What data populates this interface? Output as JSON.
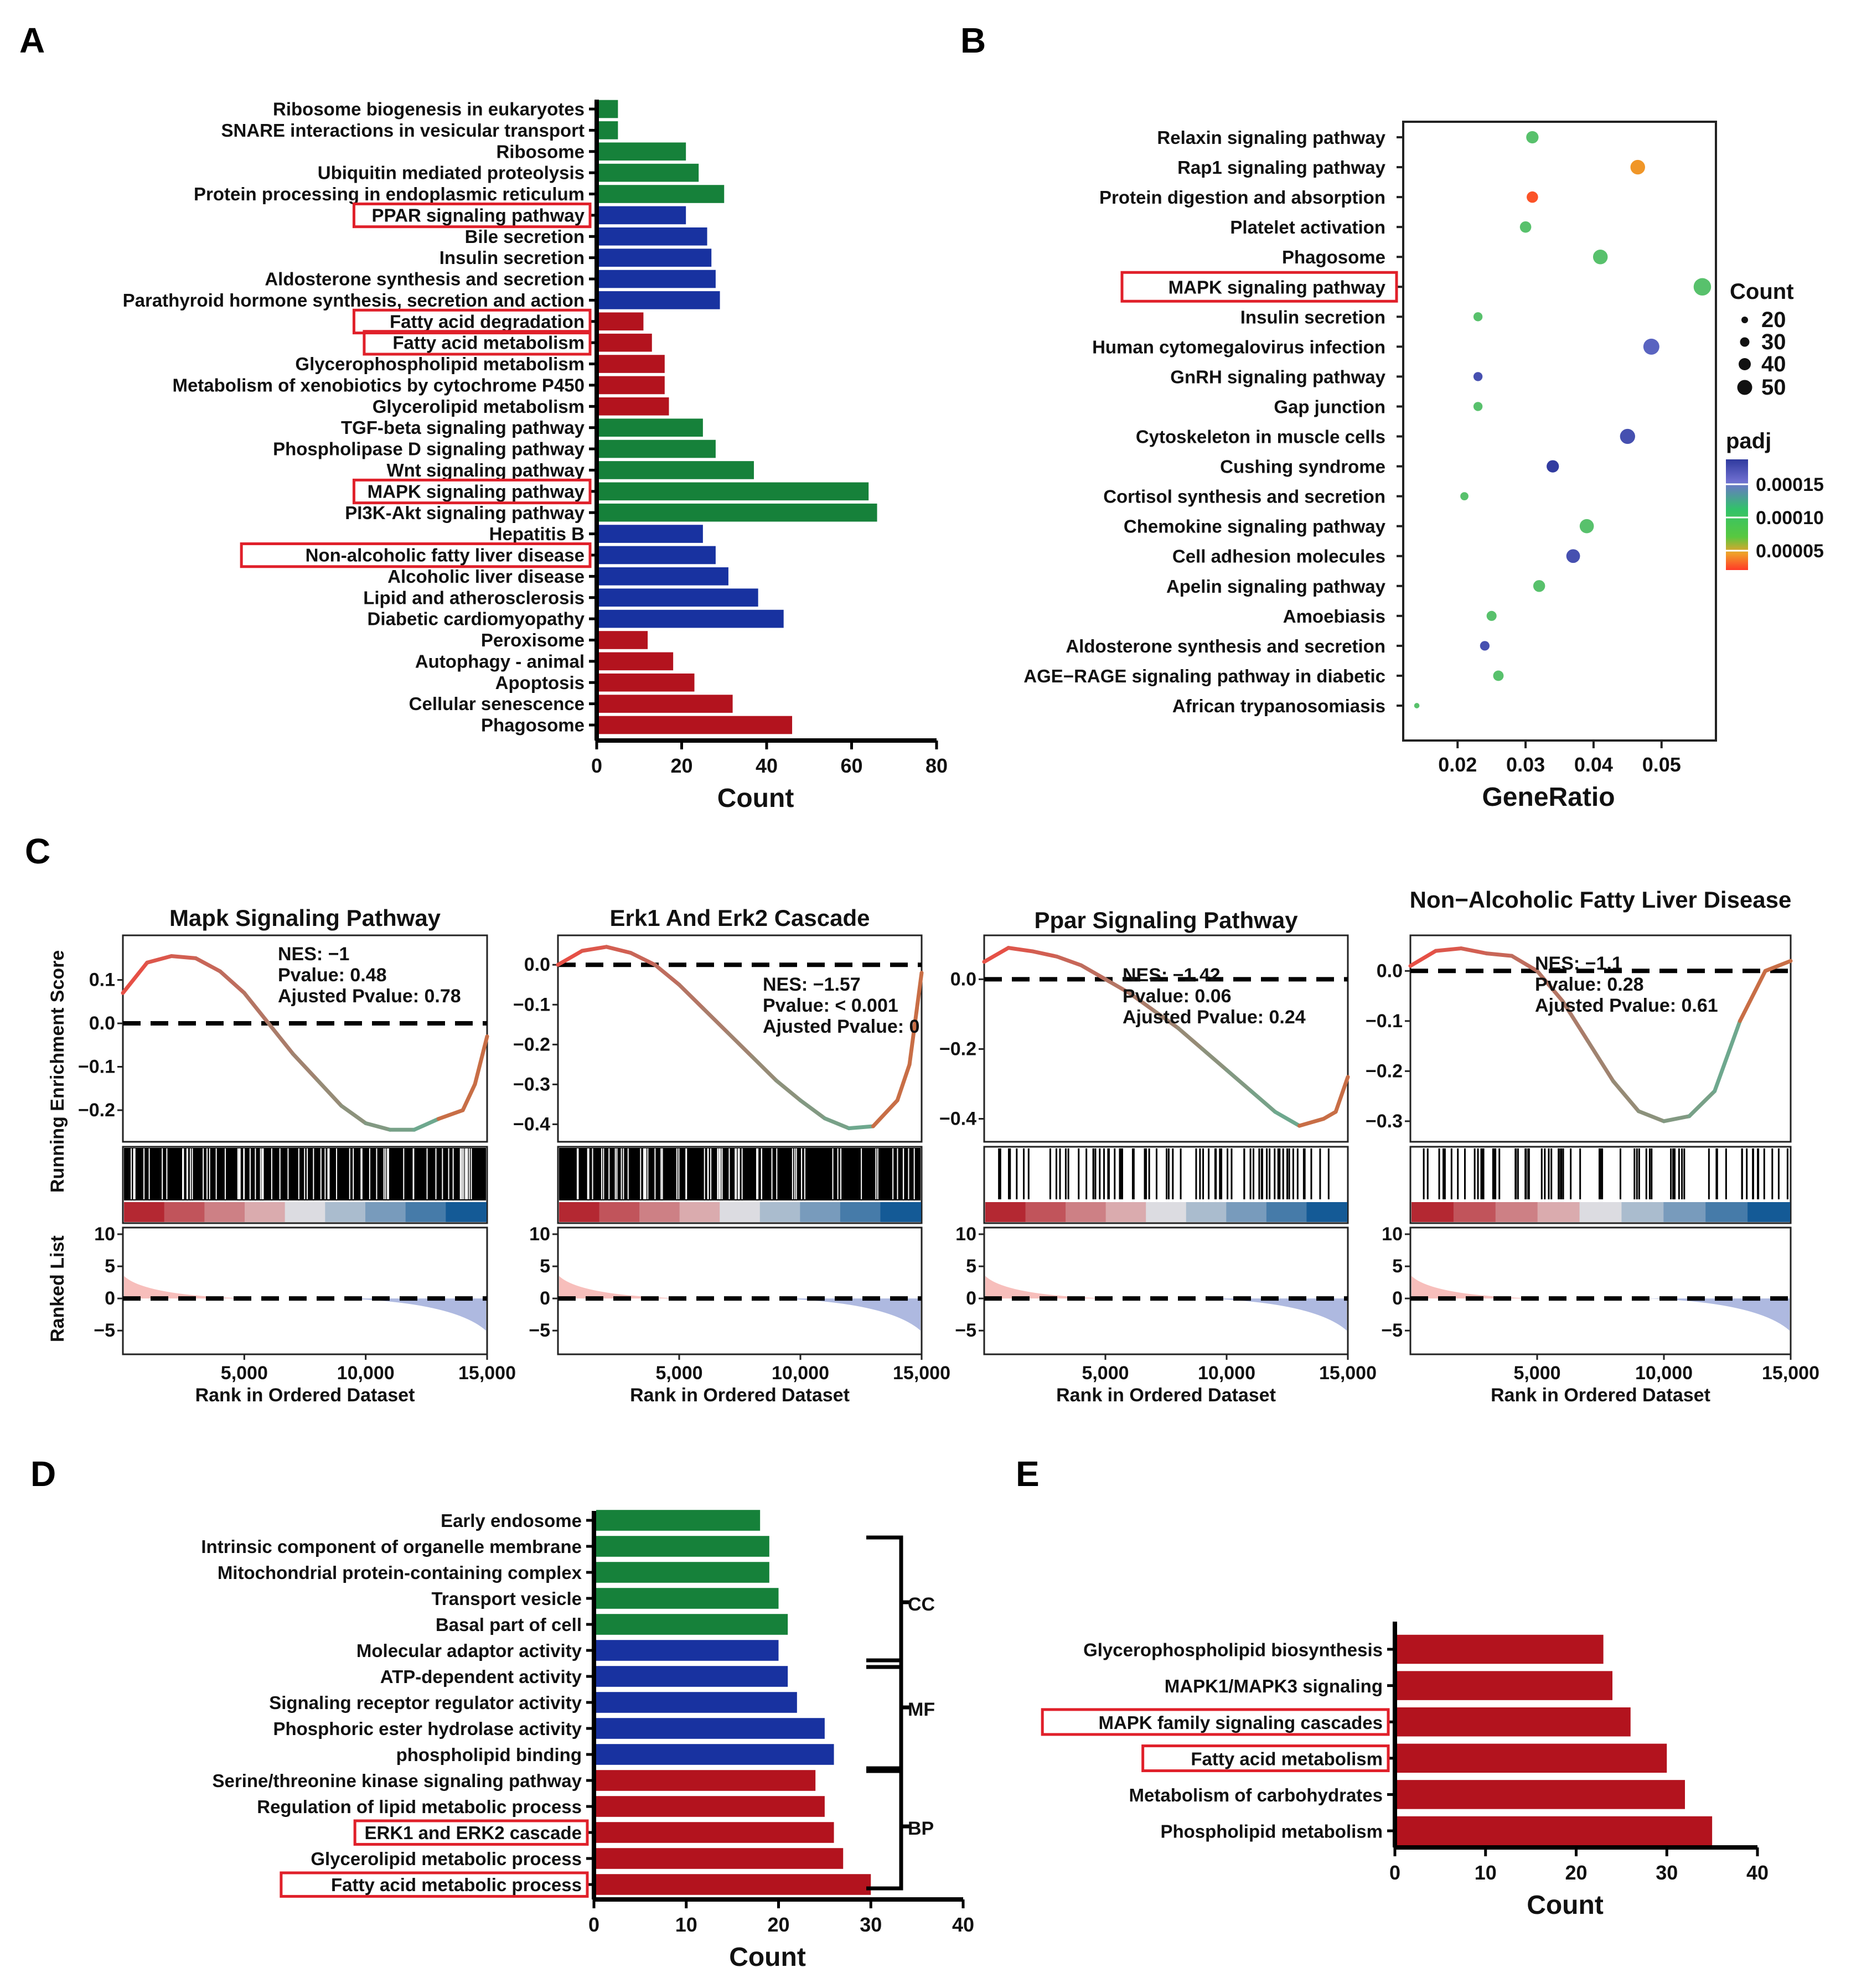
{
  "panel_labels": {
    "A": "A",
    "B": "B",
    "C": "C",
    "D": "D",
    "E": "E"
  },
  "colors": {
    "green": "#16813A",
    "blue": "#1832A0",
    "red": "#B3131E",
    "highlight": "#E0202A",
    "black": "#000000"
  },
  "chart_data": [
    {
      "id": "A",
      "type": "bar",
      "orientation": "horizontal",
      "xlabel": "Count",
      "xlim": [
        0,
        80
      ],
      "xticks": [
        0,
        20,
        40,
        60,
        80
      ],
      "categories": [
        "Ribosome biogenesis in eukaryotes",
        "SNARE interactions in vesicular transport",
        "Ribosome",
        "Ubiquitin mediated proteolysis",
        "Protein processing in endoplasmic reticulum",
        "PPAR signaling pathway",
        "Bile secretion",
        "Insulin secretion",
        "Aldosterone synthesis and secretion",
        "Parathyroid hormone synthesis, secretion and action",
        "Fatty acid degradation",
        "Fatty acid metabolism",
        "Glycerophospholipid metabolism",
        "Metabolism of xenobiotics by cytochrome P450",
        "Glycerolipid metabolism",
        "TGF-beta signaling pathway",
        "Phospholipase D signaling pathway",
        "Wnt signaling pathway",
        "MAPK signaling pathway",
        "PI3K-Akt signaling pathway",
        "Hepatitis B",
        "Non-alcoholic fatty liver disease",
        "Alcoholic liver disease",
        "Lipid and atherosclerosis",
        "Diabetic cardiomyopathy",
        "Peroxisome",
        "Autophagy - animal",
        "Apoptosis",
        "Cellular senescence",
        "Phagosome"
      ],
      "values": [
        5,
        5,
        21,
        24,
        30,
        21,
        26,
        27,
        28,
        29,
        11,
        13,
        16,
        16,
        17,
        25,
        28,
        37,
        64,
        66,
        25,
        28,
        31,
        38,
        44,
        12,
        18,
        23,
        32,
        46
      ],
      "groups": [
        "green",
        "green",
        "green",
        "green",
        "green",
        "blue",
        "blue",
        "blue",
        "blue",
        "blue",
        "red",
        "red",
        "red",
        "red",
        "red",
        "green",
        "green",
        "green",
        "green",
        "green",
        "blue",
        "blue",
        "blue",
        "blue",
        "blue",
        "red",
        "red",
        "red",
        "red",
        "red"
      ],
      "highlighted": [
        "PPAR signaling pathway",
        "Fatty acid degradation",
        "Fatty acid metabolism",
        "MAPK signaling pathway",
        "Non-alcoholic fatty liver disease"
      ]
    },
    {
      "id": "B",
      "type": "scatter",
      "xlabel": "GeneRatio",
      "xlim": [
        0.012,
        0.058
      ],
      "xticks": [
        0.02,
        0.03,
        0.04,
        0.05
      ],
      "xticklabels": [
        "0.02",
        "0.03",
        "0.04",
        "0.05"
      ],
      "categories": [
        "Relaxin signaling pathway",
        "Rap1 signaling pathway",
        "Protein digestion and absorption",
        "Platelet activation",
        "Phagosome",
        "MAPK signaling pathway",
        "Insulin secretion",
        "Human cytomegalovirus infection",
        "GnRH signaling pathway",
        "Gap junction",
        "Cytoskeleton in muscle cells",
        "Cushing syndrome",
        "Cortisol synthesis and secretion",
        "Chemokine signaling pathway",
        "Cell adhesion molecules",
        "Apelin signaling pathway",
        "Amoebiasis",
        "Aldosterone synthesis and secretion",
        "AGE−RAGE signaling pathway in diabetic",
        "African trypanosomiasis"
      ],
      "gene_ratio": [
        0.031,
        0.0465,
        0.031,
        0.03,
        0.041,
        0.056,
        0.023,
        0.0485,
        0.023,
        0.023,
        0.045,
        0.034,
        0.021,
        0.039,
        0.037,
        0.032,
        0.025,
        0.024,
        0.026,
        0.014
      ],
      "count": [
        27,
        32,
        25,
        25,
        32,
        38,
        20,
        35,
        20,
        20,
        33,
        27,
        18,
        31,
        30,
        26,
        22,
        21,
        23,
        12
      ],
      "padj": [
        0.00011,
        4e-05,
        1e-05,
        0.00011,
        0.00011,
        0.00011,
        0.00011,
        0.00016,
        0.00017,
        0.00011,
        0.00017,
        0.00018,
        0.00011,
        0.00011,
        0.00017,
        0.00011,
        0.00011,
        0.00017,
        0.00011,
        0.00011
      ],
      "highlighted": [
        "MAPK signaling pathway"
      ],
      "legend": {
        "size_title": "Count",
        "size_values": [
          "20",
          "30",
          "40",
          "50"
        ],
        "color_title": "padj",
        "color_ticks": [
          "0.00015",
          "0.00010",
          "0.00005"
        ]
      }
    },
    {
      "id": "C",
      "type": "line",
      "ylabel_top": "Running Enrichment Score",
      "ylabel_bottom": "Ranked List",
      "xlabel": "Rank in Ordered Dataset",
      "xticks": [
        "5,000",
        "10,000",
        "15,000"
      ],
      "panels": [
        {
          "title": "Mapk Signaling Pathway",
          "stats": [
            "NES: −1",
            "Pvalue: 0.48",
            "Ajusted Pvalue: 0.78"
          ],
          "ylim": [
            -0.26,
            0.19
          ],
          "yticks": [
            "0.1",
            "0.0",
            "−0.1",
            "−0.2"
          ],
          "ytick_values": [
            0.1,
            0.0,
            -0.1,
            -0.2
          ],
          "es_x": [
            0,
            1000,
            2000,
            3000,
            4000,
            5000,
            6000,
            7000,
            8000,
            9000,
            10000,
            11000,
            12000,
            13000,
            14000,
            14500,
            15000
          ],
          "es_y": [
            0.07,
            0.14,
            0.155,
            0.15,
            0.12,
            0.07,
            0.0,
            -0.07,
            -0.13,
            -0.19,
            -0.23,
            -0.245,
            -0.245,
            -0.22,
            -0.2,
            -0.14,
            -0.03
          ]
        },
        {
          "title": "Erk1 And Erk2 Cascade",
          "stats": [
            "NES: −1.57",
            "Pvalue: < 0.001",
            "Ajusted Pvalue: 0"
          ],
          "ylim": [
            -0.43,
            0.06
          ],
          "yticks": [
            "0.0",
            "−0.1",
            "−0.2",
            "−0.3",
            "−0.4"
          ],
          "ytick_values": [
            0.0,
            -0.1,
            -0.2,
            -0.3,
            -0.4
          ],
          "es_x": [
            0,
            1000,
            2000,
            3000,
            4000,
            5000,
            6000,
            7000,
            8000,
            9000,
            10000,
            11000,
            12000,
            13000,
            14000,
            14500,
            15000
          ],
          "es_y": [
            0.0,
            0.035,
            0.045,
            0.03,
            0.0,
            -0.05,
            -0.11,
            -0.17,
            -0.23,
            -0.29,
            -0.34,
            -0.385,
            -0.41,
            -0.405,
            -0.34,
            -0.25,
            -0.02
          ]
        },
        {
          "title": "Ppar Signaling Pathway",
          "stats": [
            "NES: −1.42",
            "Pvalue: 0.06",
            "Ajusted Pvalue: 0.24"
          ],
          "ylim": [
            -0.45,
            0.11
          ],
          "yticks": [
            "0.0",
            "−0.2",
            "−0.4"
          ],
          "ytick_values": [
            0.0,
            -0.2,
            -0.4
          ],
          "es_x": [
            0,
            1000,
            2000,
            3000,
            4000,
            5000,
            6000,
            7000,
            8000,
            9000,
            10000,
            11000,
            12000,
            13000,
            14000,
            14500,
            15000
          ],
          "es_y": [
            0.05,
            0.09,
            0.08,
            0.065,
            0.04,
            0.0,
            -0.04,
            -0.09,
            -0.14,
            -0.2,
            -0.26,
            -0.32,
            -0.38,
            -0.42,
            -0.4,
            -0.38,
            -0.28
          ]
        },
        {
          "title": "Non−Alcoholic Fatty Liver Disease",
          "stats": [
            "NES: −1.1",
            "Pvalue: 0.28",
            "Ajusted Pvalue: 0.61"
          ],
          "ylim": [
            -0.33,
            0.06
          ],
          "yticks": [
            "0.0",
            "−0.1",
            "−0.2",
            "−0.3"
          ],
          "ytick_values": [
            0.0,
            -0.1,
            -0.2,
            -0.3
          ],
          "es_x": [
            0,
            1000,
            2000,
            3000,
            4000,
            5000,
            6000,
            7000,
            8000,
            9000,
            10000,
            11000,
            12000,
            13000,
            14000,
            14500,
            15000
          ],
          "es_y": [
            0.01,
            0.04,
            0.045,
            0.035,
            0.03,
            0.0,
            -0.06,
            -0.14,
            -0.22,
            -0.28,
            -0.3,
            -0.29,
            -0.24,
            -0.1,
            0.0,
            0.01,
            0.02
          ]
        }
      ],
      "ranked_list_yticks": [
        "10",
        "5",
        "0",
        "−5"
      ],
      "ranked_list_values": [
        10,
        5,
        0,
        -5
      ]
    },
    {
      "id": "D",
      "type": "bar",
      "orientation": "horizontal",
      "xlabel": "Count",
      "xlim": [
        0,
        40
      ],
      "xticks": [
        0,
        10,
        20,
        30,
        40
      ],
      "categories": [
        "Early endosome",
        "Intrinsic component of organelle membrane",
        "Mitochondrial protein-containing complex",
        "Transport vesicle",
        "Basal part of cell",
        "Molecular adaptor activity",
        "ATP-dependent activity",
        "Signaling receptor regulator activity",
        "Phosphoric ester hydrolase activity",
        "phospholipid binding",
        "Serine/threonine kinase signaling pathway",
        "Regulation of lipid metabolic process",
        "ERK1 and ERK2 cascade",
        "Glycerolipid metabolic process",
        "Fatty acid metabolic process"
      ],
      "values": [
        18,
        19,
        19,
        20,
        21,
        20,
        21,
        22,
        25,
        26,
        24,
        25,
        26,
        27,
        30
      ],
      "groups": [
        "green",
        "green",
        "green",
        "green",
        "green",
        "blue",
        "blue",
        "blue",
        "blue",
        "blue",
        "red",
        "red",
        "red",
        "red",
        "red"
      ],
      "brackets": [
        "CC",
        "MF",
        "BP"
      ],
      "highlighted": [
        "ERK1 and ERK2 cascade",
        "Fatty acid metabolic process"
      ]
    },
    {
      "id": "E",
      "type": "bar",
      "orientation": "horizontal",
      "xlabel": "Count",
      "xlim": [
        0,
        40
      ],
      "xticks": [
        0,
        10,
        20,
        30,
        40
      ],
      "categories": [
        "Glycerophospholipid biosynthesis",
        "MAPK1/MAPK3 signaling",
        "MAPK family signaling cascades",
        "Fatty acid metabolism",
        "Metabolism of carbohydrates",
        "Phospholipid metabolism"
      ],
      "values": [
        23,
        24,
        26,
        30,
        32,
        35
      ],
      "groups": [
        "red",
        "red",
        "red",
        "red",
        "red",
        "red"
      ],
      "highlighted": [
        "MAPK family signaling cascades",
        "Fatty acid metabolism"
      ]
    }
  ]
}
